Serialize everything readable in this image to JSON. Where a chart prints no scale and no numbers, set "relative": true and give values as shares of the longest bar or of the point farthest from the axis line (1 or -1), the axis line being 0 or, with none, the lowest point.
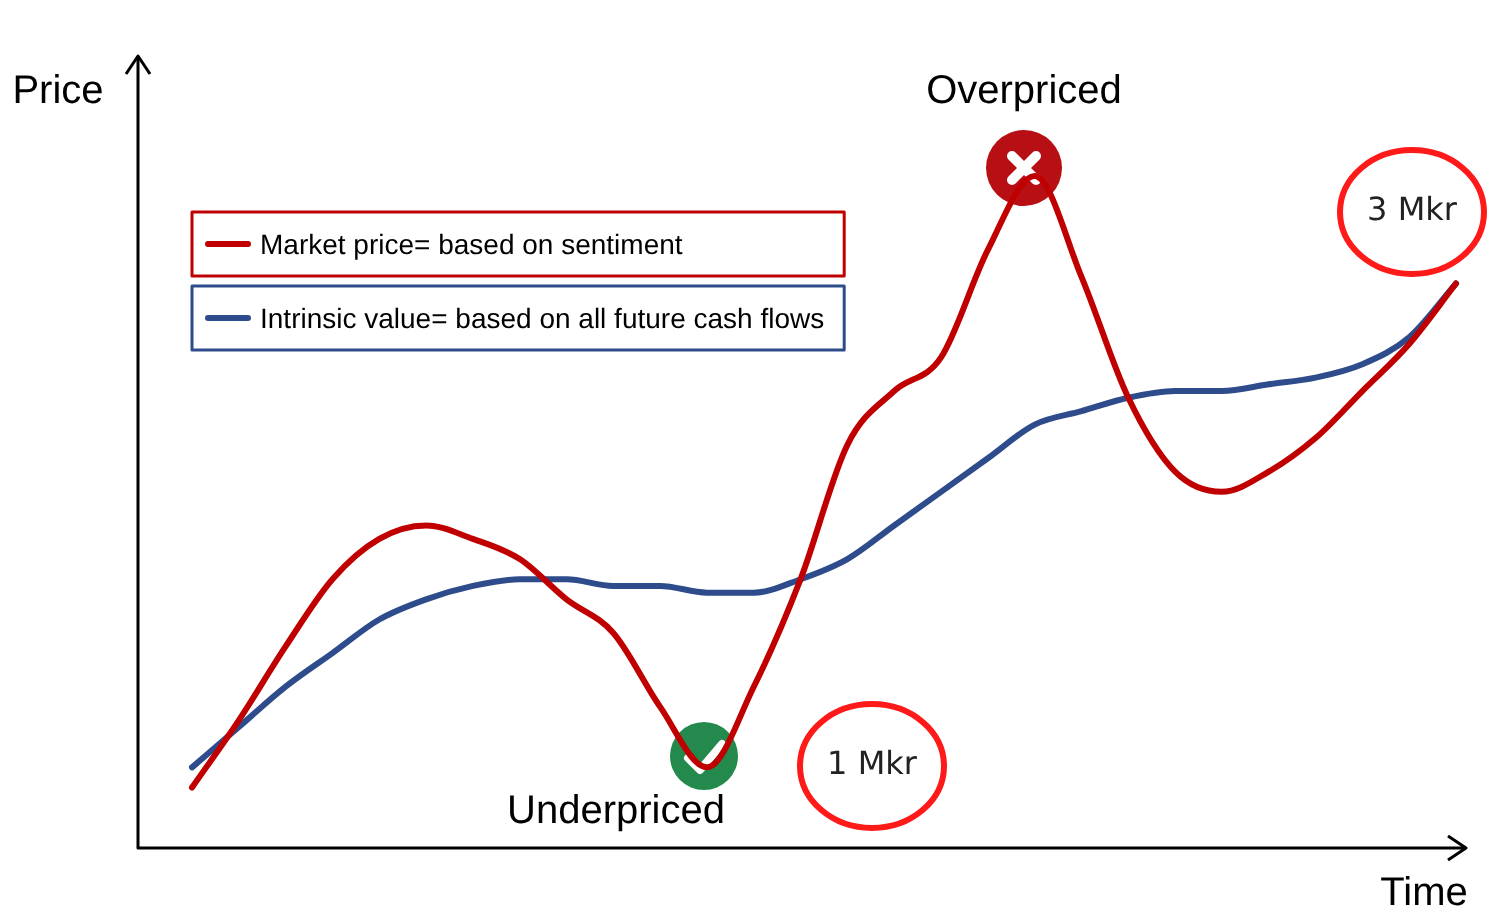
{
  "chart_data": {
    "type": "line",
    "relative": true,
    "xlabel": "Time",
    "ylabel": "Price",
    "legend": "top left",
    "categories": [
      null,
      null,
      null,
      null,
      null,
      null,
      null,
      null,
      null,
      null,
      null,
      null,
      null,
      null,
      null,
      null,
      null,
      null,
      null,
      null,
      null,
      null,
      null,
      null,
      null,
      null,
      null,
      null
    ],
    "series": [
      {
        "name": "Market price= based on sentiment",
        "color": "#c00000",
        "values": [
          0.09,
          0.19,
          0.3,
          0.4,
          0.46,
          0.48,
          0.46,
          0.43,
          0.37,
          0.32,
          0.21,
          0.12,
          0.24,
          0.4,
          0.6,
          0.68,
          0.73,
          0.89,
          1,
          0.85,
          0.67,
          0.56,
          0.53,
          0.56,
          0.61,
          0.68,
          0.75,
          0.84
        ]
      },
      {
        "name": "Intrinsic value= based on all future cash flows",
        "color": "#2e4b8b",
        "values": [
          0.12,
          0.18,
          0.24,
          0.29,
          0.34,
          0.37,
          0.39,
          0.4,
          0.4,
          0.39,
          0.39,
          0.38,
          0.38,
          0.4,
          0.43,
          0.48,
          0.53,
          0.58,
          0.63,
          0.65,
          0.67,
          0.68,
          0.68,
          0.69,
          0.7,
          0.72,
          0.76,
          0.84
        ]
      }
    ],
    "annotations": [
      "Overpriced",
      "Underpriced",
      "1 Mkr",
      "3 Mkr"
    ]
  }
}
